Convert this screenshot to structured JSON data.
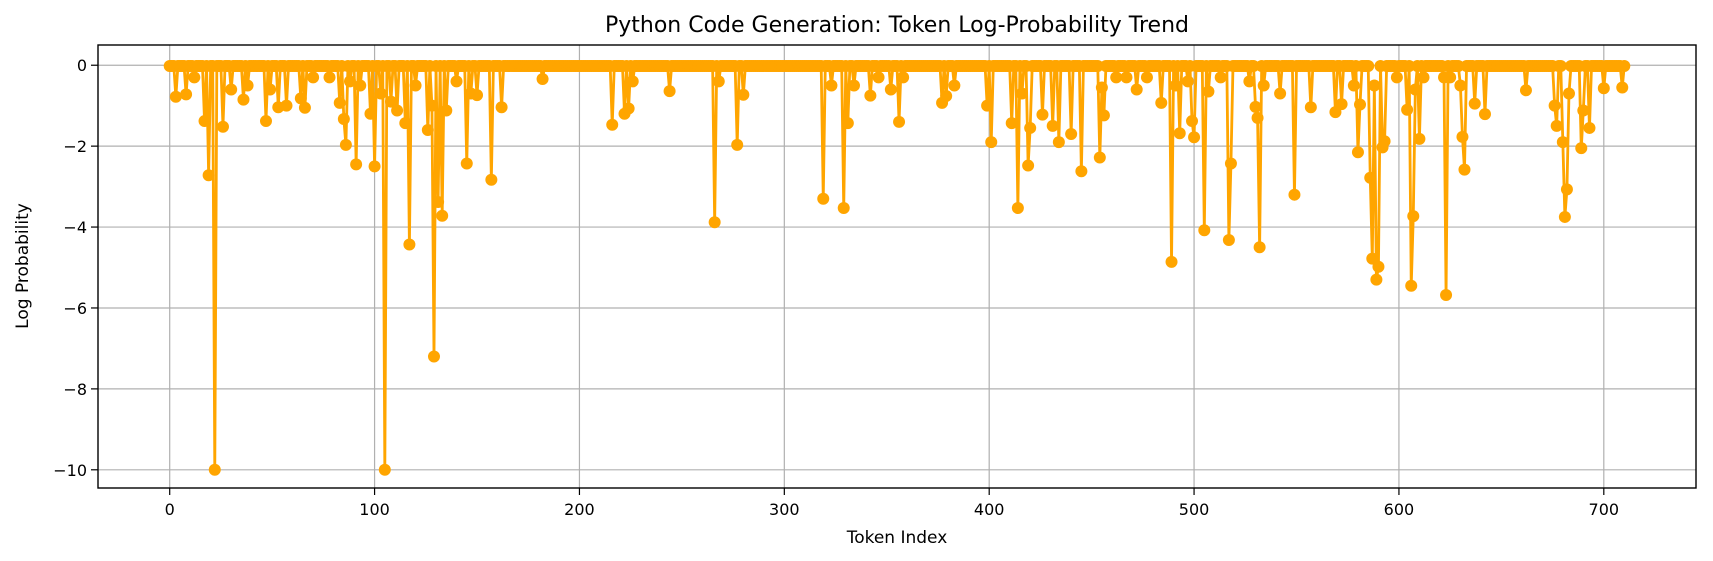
{
  "chart_data": {
    "type": "line",
    "title": "Python Code Generation: Token Log-Probability Trend",
    "xlabel": "Token Index",
    "ylabel": "Log Probability",
    "xlim": [
      -35,
      745
    ],
    "ylim": [
      -10.45,
      0.5
    ],
    "xticks": [
      0,
      100,
      200,
      300,
      400,
      500,
      600,
      700
    ],
    "yticks": [
      0,
      -2,
      -4,
      -6,
      -8,
      -10
    ],
    "xtick_labels": [
      "0",
      "100",
      "200",
      "300",
      "400",
      "500",
      "600",
      "700"
    ],
    "ytick_labels": [
      "0",
      "−2",
      "−4",
      "−6",
      "−8",
      "−10"
    ],
    "grid": true,
    "color": "#FFA500",
    "markers": true,
    "n_tokens": 711,
    "baseline": -0.02,
    "dips": [
      [
        3,
        -0.78
      ],
      [
        8,
        -0.72
      ],
      [
        12,
        -0.3
      ],
      [
        17,
        -1.38
      ],
      [
        19,
        -2.72
      ],
      [
        22,
        -10.0
      ],
      [
        26,
        -1.52
      ],
      [
        30,
        -0.6
      ],
      [
        36,
        -0.85
      ],
      [
        38,
        -0.5
      ],
      [
        47,
        -1.38
      ],
      [
        49,
        -0.6
      ],
      [
        53,
        -1.04
      ],
      [
        57,
        -1.0
      ],
      [
        64,
        -0.82
      ],
      [
        66,
        -1.05
      ],
      [
        70,
        -0.3
      ],
      [
        78,
        -0.3
      ],
      [
        83,
        -0.93
      ],
      [
        85,
        -1.33
      ],
      [
        86,
        -1.97
      ],
      [
        88,
        -0.4
      ],
      [
        91,
        -2.45
      ],
      [
        93,
        -0.5
      ],
      [
        98,
        -1.2
      ],
      [
        100,
        -2.5
      ],
      [
        103,
        -0.7
      ],
      [
        105,
        -10.0
      ],
      [
        108,
        -0.9
      ],
      [
        111,
        -1.12
      ],
      [
        115,
        -1.43
      ],
      [
        117,
        -4.43
      ],
      [
        120,
        -0.5
      ],
      [
        126,
        -1.6
      ],
      [
        128,
        -1.0
      ],
      [
        129,
        -7.2
      ],
      [
        131,
        -3.38
      ],
      [
        133,
        -3.72
      ],
      [
        135,
        -1.12
      ],
      [
        140,
        -0.4
      ],
      [
        145,
        -2.43
      ],
      [
        147,
        -0.7
      ],
      [
        150,
        -0.74
      ],
      [
        157,
        -2.83
      ],
      [
        162,
        -1.04
      ],
      [
        182,
        -0.34
      ],
      [
        216,
        -1.47
      ],
      [
        222,
        -1.2
      ],
      [
        224,
        -1.07
      ],
      [
        226,
        -0.4
      ],
      [
        244,
        -0.64
      ],
      [
        266,
        -3.88
      ],
      [
        268,
        -0.4
      ],
      [
        277,
        -1.97
      ],
      [
        280,
        -0.73
      ],
      [
        319,
        -3.3
      ],
      [
        323,
        -0.5
      ],
      [
        329,
        -3.53
      ],
      [
        331,
        -1.43
      ],
      [
        334,
        -0.5
      ],
      [
        342,
        -0.75
      ],
      [
        346,
        -0.3
      ],
      [
        352,
        -0.6
      ],
      [
        356,
        -1.4
      ],
      [
        358,
        -0.3
      ],
      [
        377,
        -0.93
      ],
      [
        379,
        -0.76
      ],
      [
        383,
        -0.5
      ],
      [
        399,
        -1.0
      ],
      [
        401,
        -1.9
      ],
      [
        411,
        -1.43
      ],
      [
        414,
        -3.53
      ],
      [
        416,
        -0.7
      ],
      [
        419,
        -2.48
      ],
      [
        420,
        -1.55
      ],
      [
        426,
        -1.22
      ],
      [
        431,
        -1.5
      ],
      [
        434,
        -1.9
      ],
      [
        440,
        -1.7
      ],
      [
        445,
        -2.62
      ],
      [
        454,
        -2.28
      ],
      [
        455,
        -0.55
      ],
      [
        456,
        -1.24
      ],
      [
        462,
        -0.3
      ],
      [
        467,
        -0.3
      ],
      [
        472,
        -0.6
      ],
      [
        477,
        -0.3
      ],
      [
        484,
        -0.93
      ],
      [
        489,
        -4.86
      ],
      [
        491,
        -0.5
      ],
      [
        493,
        -1.68
      ],
      [
        497,
        -0.4
      ],
      [
        499,
        -1.38
      ],
      [
        500,
        -1.78
      ],
      [
        505,
        -4.08
      ],
      [
        507,
        -0.65
      ],
      [
        513,
        -0.3
      ],
      [
        517,
        -4.32
      ],
      [
        518,
        -2.43
      ],
      [
        527,
        -0.4
      ],
      [
        530,
        -1.03
      ],
      [
        531,
        -1.3
      ],
      [
        532,
        -4.5
      ],
      [
        534,
        -0.5
      ],
      [
        542,
        -0.7
      ],
      [
        549,
        -3.2
      ],
      [
        557,
        -1.04
      ],
      [
        569,
        -1.16
      ],
      [
        572,
        -0.96
      ],
      [
        578,
        -0.5
      ],
      [
        580,
        -2.15
      ],
      [
        581,
        -0.97
      ],
      [
        586,
        -2.78
      ],
      [
        587,
        -4.78
      ],
      [
        588,
        -0.5
      ],
      [
        589,
        -5.3
      ],
      [
        590,
        -4.98
      ],
      [
        592,
        -2.03
      ],
      [
        593,
        -1.88
      ],
      [
        599,
        -0.3
      ],
      [
        604,
        -1.1
      ],
      [
        606,
        -5.45
      ],
      [
        607,
        -3.73
      ],
      [
        608,
        -0.6
      ],
      [
        610,
        -1.82
      ],
      [
        612,
        -0.3
      ],
      [
        622,
        -0.3
      ],
      [
        623,
        -5.68
      ],
      [
        625,
        -0.3
      ],
      [
        630,
        -0.5
      ],
      [
        631,
        -1.77
      ],
      [
        632,
        -2.58
      ],
      [
        637,
        -0.95
      ],
      [
        642,
        -1.21
      ],
      [
        662,
        -0.62
      ],
      [
        676,
        -1.0
      ],
      [
        677,
        -1.5
      ],
      [
        680,
        -1.9
      ],
      [
        681,
        -3.75
      ],
      [
        682,
        -3.07
      ],
      [
        683,
        -0.7
      ],
      [
        689,
        -2.05
      ],
      [
        690,
        -1.12
      ],
      [
        693,
        -1.55
      ],
      [
        700,
        -0.57
      ],
      [
        709,
        -0.55
      ]
    ]
  }
}
